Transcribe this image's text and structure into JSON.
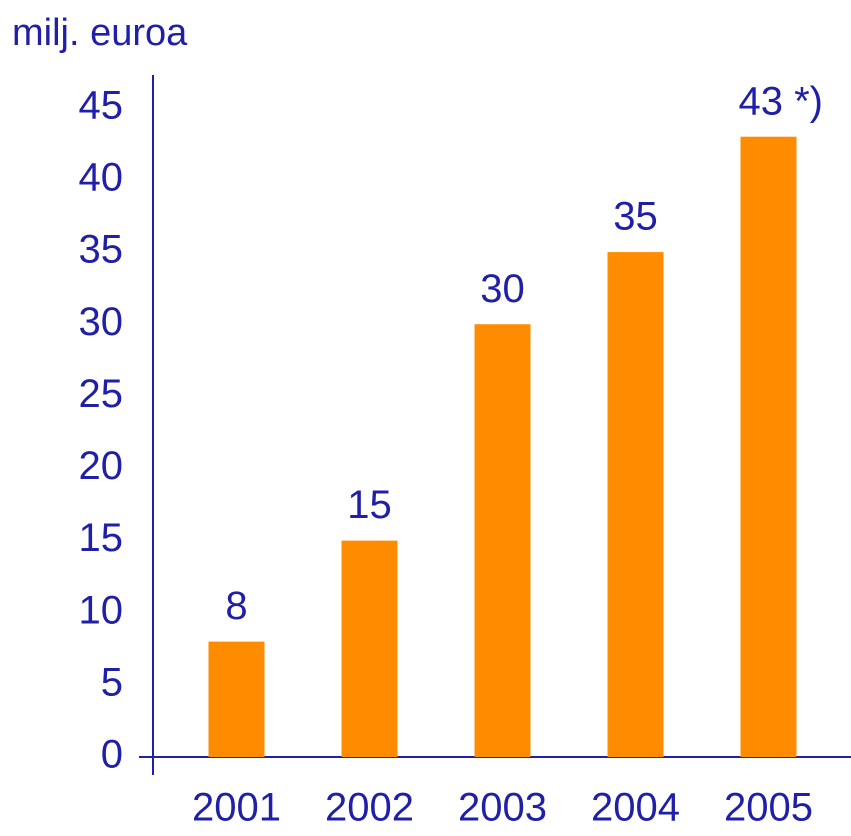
{
  "chart_data": {
    "type": "bar",
    "title": "milj. euroa",
    "categories": [
      "2001",
      "2002",
      "2003",
      "2004",
      "2005"
    ],
    "values": [
      8,
      15,
      30,
      35,
      43
    ],
    "value_labels": [
      "8",
      "15",
      "30",
      "35",
      "43 *)"
    ],
    "color": "#ff8c00",
    "ylim": [
      0,
      47
    ],
    "yticks": [
      0,
      5,
      10,
      15,
      20,
      25,
      30,
      35,
      40,
      45
    ],
    "grid": false
  }
}
